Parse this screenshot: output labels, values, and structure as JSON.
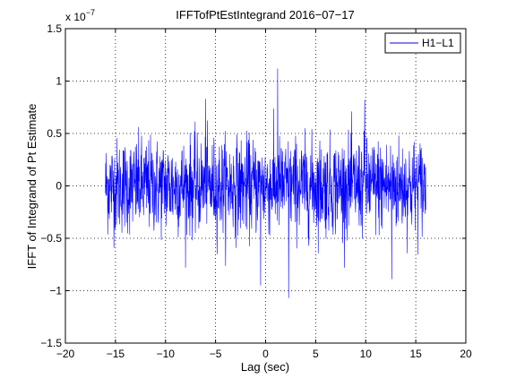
{
  "chart_data": {
    "type": "line",
    "title": "IFFTofPtEstIntegrand 2016−07−17",
    "xlabel": "Lag (sec)",
    "ylabel": "IFFT of Integrand of Pt Estimate",
    "y_exponent_label": "x 10",
    "y_exponent_power": "−7",
    "xlim": [
      -20,
      20
    ],
    "ylim": [
      -1.5,
      1.5
    ],
    "grid": true,
    "legend_position": "top-right",
    "xticks": [
      -20,
      -15,
      -10,
      -5,
      0,
      5,
      10,
      15,
      20
    ],
    "xtick_labels": [
      "−20",
      "−15",
      "−10",
      "−5",
      "0",
      "5",
      "10",
      "15",
      "20"
    ],
    "yticks": [
      -1.5,
      -1,
      -0.5,
      0,
      0.5,
      1,
      1.5
    ],
    "ytick_labels": [
      "−1.5",
      "−1",
      "−0.5",
      "0",
      "0.5",
      "1",
      "1.5"
    ],
    "series": [
      {
        "name": "H1−L1",
        "color": "#0000ff",
        "x_start": -16,
        "x_end": 16,
        "typical_amplitude": 0.25,
        "outliers": [
          {
            "x": 1.2,
            "y": 1.12
          },
          {
            "x": 2.3,
            "y": -1.07
          },
          {
            "x": -0.5,
            "y": -0.95
          },
          {
            "x": 12.6,
            "y": -0.89
          },
          {
            "x": -6.0,
            "y": 0.83
          },
          {
            "x": 9.9,
            "y": 0.82
          }
        ]
      }
    ]
  }
}
